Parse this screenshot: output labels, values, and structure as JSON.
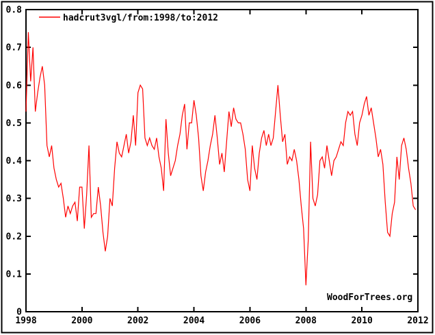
{
  "chart_data": {
    "type": "line",
    "title": "",
    "legend_label": "hadcrut3vgl/from:1998/to:2012",
    "watermark": "WoodForTrees.org",
    "series_color": "#ff0000",
    "axis_color": "#000000",
    "background_color": "#ffffff",
    "grid": false,
    "legend_position": "top-left-inside",
    "xlabel": "",
    "ylabel": "",
    "xlim": [
      1998,
      2012
    ],
    "ylim": [
      0,
      0.8
    ],
    "x_tick_labels": [
      "1998",
      "2000",
      "2002",
      "2004",
      "2006",
      "2008",
      "2010",
      "2012"
    ],
    "y_tick_labels": [
      "0.8",
      "0.7",
      "0.6",
      "0.5",
      "0.4",
      "0.3",
      "0.2",
      "0.1",
      "0"
    ],
    "series": [
      {
        "name": "hadcrut3vgl/from:1998/to:2012",
        "x_start_year": 1998.0,
        "x_step_years": 0.083333,
        "values": [
          0.53,
          0.74,
          0.61,
          0.7,
          0.53,
          0.58,
          0.62,
          0.65,
          0.6,
          0.44,
          0.41,
          0.44,
          0.38,
          0.35,
          0.33,
          0.34,
          0.3,
          0.25,
          0.28,
          0.26,
          0.28,
          0.29,
          0.24,
          0.33,
          0.33,
          0.22,
          0.31,
          0.44,
          0.25,
          0.26,
          0.26,
          0.33,
          0.28,
          0.21,
          0.16,
          0.2,
          0.3,
          0.28,
          0.38,
          0.45,
          0.42,
          0.41,
          0.44,
          0.47,
          0.42,
          0.45,
          0.52,
          0.44,
          0.58,
          0.6,
          0.59,
          0.46,
          0.44,
          0.46,
          0.44,
          0.43,
          0.46,
          0.41,
          0.38,
          0.32,
          0.51,
          0.42,
          0.36,
          0.38,
          0.4,
          0.44,
          0.47,
          0.52,
          0.55,
          0.43,
          0.5,
          0.5,
          0.56,
          0.52,
          0.46,
          0.36,
          0.32,
          0.37,
          0.4,
          0.44,
          0.47,
          0.52,
          0.46,
          0.39,
          0.42,
          0.37,
          0.45,
          0.53,
          0.49,
          0.54,
          0.51,
          0.5,
          0.5,
          0.47,
          0.43,
          0.35,
          0.32,
          0.44,
          0.38,
          0.35,
          0.42,
          0.46,
          0.48,
          0.44,
          0.47,
          0.44,
          0.46,
          0.53,
          0.6,
          0.52,
          0.45,
          0.47,
          0.39,
          0.41,
          0.4,
          0.43,
          0.4,
          0.35,
          0.28,
          0.22,
          0.07,
          0.19,
          0.45,
          0.3,
          0.28,
          0.31,
          0.4,
          0.41,
          0.38,
          0.44,
          0.4,
          0.36,
          0.4,
          0.41,
          0.43,
          0.45,
          0.44,
          0.5,
          0.53,
          0.52,
          0.53,
          0.47,
          0.44,
          0.5,
          0.52,
          0.55,
          0.57,
          0.52,
          0.54,
          0.5,
          0.46,
          0.41,
          0.43,
          0.39,
          0.29,
          0.21,
          0.2,
          0.26,
          0.29,
          0.41,
          0.35,
          0.44,
          0.46,
          0.43,
          0.38,
          0.34,
          0.28,
          0.27
        ]
      }
    ]
  }
}
